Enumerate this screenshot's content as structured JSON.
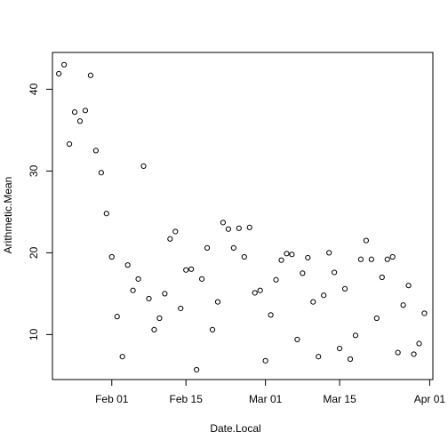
{
  "chart_data": {
    "type": "scatter",
    "title": "",
    "xlabel": "Date.Local",
    "ylabel": "Arithmetic.Mean",
    "x_ticks": [
      "Feb 01",
      "Feb 15",
      "Mar 01",
      "Mar 15",
      "Apr 01"
    ],
    "y_ticks": [
      10,
      20,
      30,
      40
    ],
    "xlim": [
      "2016-01-21",
      "2016-04-01"
    ],
    "ylim": [
      4.5,
      44.5
    ],
    "grid": false,
    "marker": "open-circle",
    "x": [
      "2016-01-22",
      "2016-01-23",
      "2016-01-24",
      "2016-01-25",
      "2016-01-26",
      "2016-01-27",
      "2016-01-28",
      "2016-01-29",
      "2016-01-30",
      "2016-01-31",
      "2016-02-01",
      "2016-02-02",
      "2016-02-03",
      "2016-02-04",
      "2016-02-05",
      "2016-02-06",
      "2016-02-07",
      "2016-02-08",
      "2016-02-09",
      "2016-02-10",
      "2016-02-11",
      "2016-02-12",
      "2016-02-13",
      "2016-02-14",
      "2016-02-15",
      "2016-02-16",
      "2016-02-17",
      "2016-02-18",
      "2016-02-19",
      "2016-02-20",
      "2016-02-21",
      "2016-02-22",
      "2016-02-23",
      "2016-02-24",
      "2016-02-25",
      "2016-02-26",
      "2016-02-27",
      "2016-02-28",
      "2016-02-29",
      "2016-03-01",
      "2016-03-02",
      "2016-03-03",
      "2016-03-04",
      "2016-03-05",
      "2016-03-06",
      "2016-03-07",
      "2016-03-08",
      "2016-03-09",
      "2016-03-10",
      "2016-03-11",
      "2016-03-12",
      "2016-03-13",
      "2016-03-14",
      "2016-03-15",
      "2016-03-16",
      "2016-03-17",
      "2016-03-18",
      "2016-03-19",
      "2016-03-20",
      "2016-03-21",
      "2016-03-22",
      "2016-03-23",
      "2016-03-24",
      "2016-03-25",
      "2016-03-26",
      "2016-03-27",
      "2016-03-28",
      "2016-03-29",
      "2016-03-30",
      "2016-03-31"
    ],
    "y": [
      41.9,
      43.0,
      33.3,
      37.2,
      36.1,
      37.4,
      41.7,
      32.5,
      29.8,
      24.8,
      19.5,
      12.2,
      7.3,
      18.5,
      15.4,
      16.8,
      30.6,
      14.4,
      10.6,
      12.0,
      15.0,
      21.7,
      22.6,
      13.2,
      17.9,
      18.0,
      5.7,
      16.8,
      20.6,
      10.6,
      14.0,
      23.7,
      22.9,
      20.6,
      23.0,
      19.5,
      23.1,
      15.1,
      15.4,
      6.8,
      12.4,
      16.7,
      19.1,
      19.9,
      19.8,
      9.4,
      17.5,
      19.4,
      14.0,
      7.3,
      14.8,
      20.0,
      17.6,
      8.3,
      15.6,
      7.0,
      9.9,
      19.2,
      21.5,
      19.2,
      12.0,
      17.0,
      19.2,
      19.5,
      7.8,
      13.6,
      16.0,
      7.6,
      8.9,
      12.6
    ]
  }
}
